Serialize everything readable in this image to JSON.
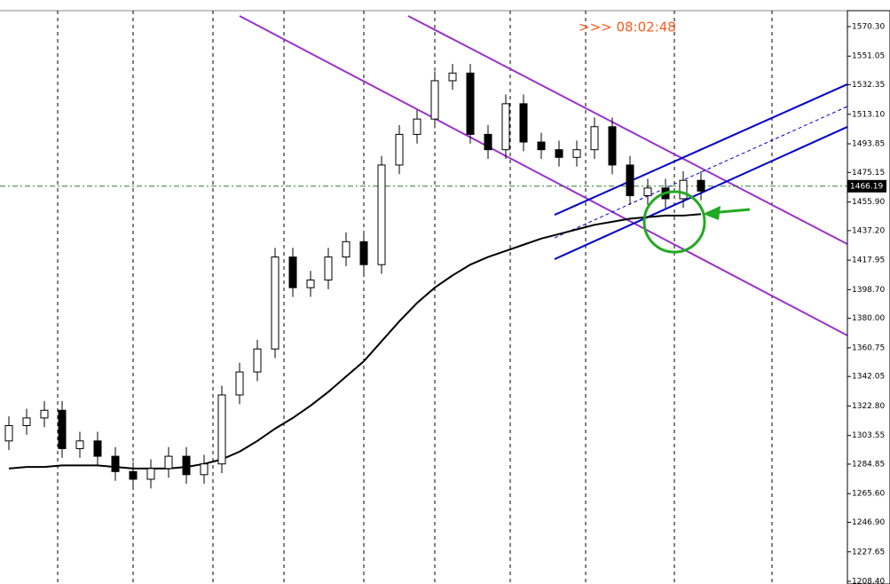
{
  "chart_data": {
    "type": "candlestick",
    "countdown": ">>> 08:02:48",
    "current_price": 1466.19,
    "ylim": [
      1206.66,
      1587.67
    ],
    "yticks": [
      {
        "value": 1570.3,
        "label": "1570.30"
      },
      {
        "value": 1551.05,
        "label": "1551.05"
      },
      {
        "value": 1532.35,
        "label": "1532.35"
      },
      {
        "value": 1513.1,
        "label": "1513.10"
      },
      {
        "value": 1493.85,
        "label": "1493.85"
      },
      {
        "value": 1475.15,
        "label": "1475.15"
      },
      {
        "value": 1455.9,
        "label": "1455.90"
      },
      {
        "value": 1437.2,
        "label": "1437.20"
      },
      {
        "value": 1417.95,
        "label": "1417.95"
      },
      {
        "value": 1398.7,
        "label": "1398.70"
      },
      {
        "value": 1380,
        "label": "1380.00"
      },
      {
        "value": 1360.75,
        "label": "1360.75"
      },
      {
        "value": 1342.05,
        "label": "1342.05"
      },
      {
        "value": 1322.8,
        "label": "1322.80"
      },
      {
        "value": 1303.55,
        "label": "1303.55"
      },
      {
        "value": 1284.85,
        "label": "1284.85"
      },
      {
        "value": 1265.6,
        "label": "1265.60"
      },
      {
        "value": 1246.9,
        "label": "1246.90"
      },
      {
        "value": 1227.65,
        "label": "1227.65"
      },
      {
        "value": 1208.4,
        "label": "1208.40"
      }
    ],
    "color": "#000000",
    "open": [
      1300,
      1310,
      1315,
      1320,
      1295,
      1300,
      1290,
      1280,
      1275,
      1282,
      1290,
      1278,
      1285,
      1330,
      1345,
      1360,
      1420,
      1400,
      1405,
      1420,
      1430,
      1415,
      1480,
      1500,
      1510,
      1535,
      1540,
      1500,
      1490,
      1520,
      1495,
      1490,
      1485,
      1490,
      1505,
      1480,
      1460,
      1465,
      1458,
      1470
    ],
    "high": [
      1316,
      1321,
      1326,
      1326,
      1306,
      1306,
      1296,
      1286,
      1288,
      1296,
      1296,
      1291,
      1336,
      1351,
      1366,
      1426,
      1426,
      1411,
      1426,
      1436,
      1436,
      1486,
      1506,
      1516,
      1541,
      1546,
      1546,
      1506,
      1526,
      1526,
      1501,
      1496,
      1496,
      1511,
      1511,
      1486,
      1471,
      1471,
      1476,
      1476
    ],
    "low": [
      1294,
      1304,
      1309,
      1289,
      1289,
      1284,
      1274,
      1269,
      1269,
      1276,
      1272,
      1272,
      1279,
      1324,
      1339,
      1354,
      1394,
      1394,
      1399,
      1414,
      1409,
      1409,
      1474,
      1494,
      1504,
      1529,
      1494,
      1484,
      1484,
      1489,
      1484,
      1479,
      1479,
      1484,
      1474,
      1454,
      1454,
      1452,
      1452,
      1457
    ],
    "close": [
      1310,
      1315,
      1320,
      1295,
      1300,
      1290,
      1280,
      1275,
      1282,
      1290,
      1278,
      1285,
      1330,
      1345,
      1360,
      1420,
      1400,
      1405,
      1420,
      1430,
      1415,
      1480,
      1500,
      1510,
      1535,
      1540,
      1500,
      1490,
      1520,
      1495,
      1490,
      1485,
      1490,
      1505,
      1480,
      1460,
      1465,
      1458,
      1470,
      1463
    ],
    "ma": {
      "color": "#000000",
      "values": [
        1282,
        1283,
        1283,
        1284,
        1284,
        1284,
        1283,
        1282,
        1282,
        1282,
        1283,
        1285,
        1288,
        1293,
        1300,
        1308,
        1315,
        1323,
        1332,
        1342,
        1352,
        1365,
        1378,
        1390,
        1400,
        1408,
        1415,
        1420,
        1424,
        1428,
        1432,
        1435,
        1438,
        1441,
        1443,
        1445,
        1446,
        1447,
        1447,
        1448
      ]
    },
    "trendlines": [
      {
        "color": "#9933cc",
        "from": [
          22.5,
          1577.25
        ],
        "to": [
          47.25,
          1428.43
        ]
      },
      {
        "color": "#9933cc",
        "from": [
          13,
          1577.25
        ],
        "to": [
          47.25,
          1368.8
        ]
      },
      {
        "color": "#0000cc",
        "from": [
          30.75,
          1447.5
        ],
        "to": [
          47.25,
          1532.7
        ]
      },
      {
        "color": "#0000cc",
        "from": [
          30.75,
          1418.6
        ],
        "to": [
          47.25,
          1504.9
        ]
      },
      {
        "color": "#0000cc",
        "dashed": true,
        "from": [
          30.75,
          1432.5
        ],
        "to": [
          47.25,
          1518.2
        ]
      }
    ]
  }
}
